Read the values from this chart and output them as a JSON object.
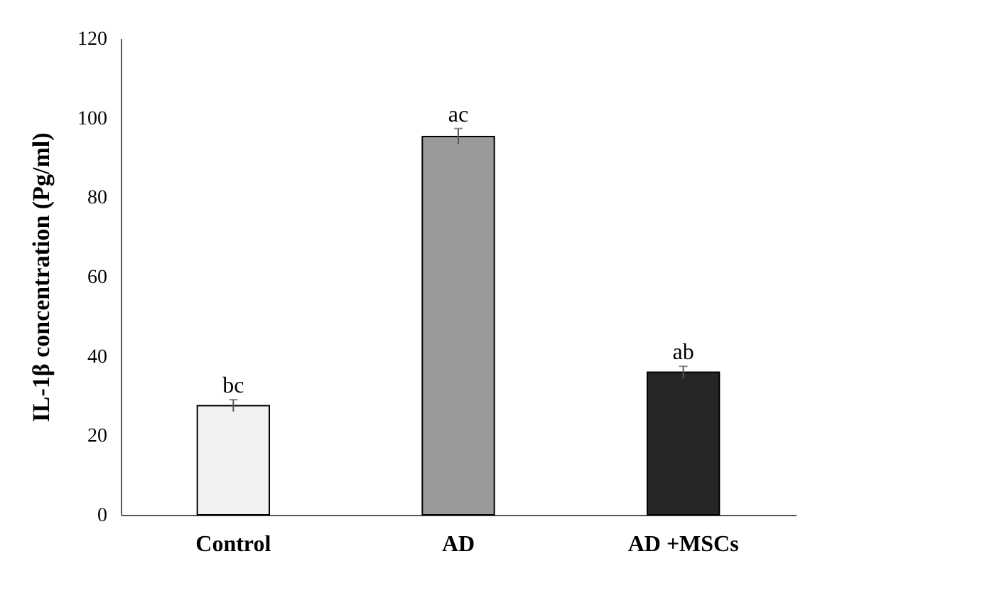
{
  "chart_data": {
    "type": "bar",
    "ylabel": "IL-1β concentration (Pg/ml)",
    "categories": [
      "Control",
      "AD",
      "AD +MSCs"
    ],
    "values": [
      27.5,
      95.3,
      35.9
    ],
    "colors": [
      "#f2f2f2",
      "#9a9a9a",
      "#262626"
    ],
    "errors": [
      1.5,
      2,
      1.5
    ],
    "ylim": [
      0,
      120
    ],
    "yticks": [
      0,
      20,
      40,
      60,
      80,
      100,
      120
    ],
    "grid": false,
    "annotations": [
      {
        "text": "bc",
        "x": "Control",
        "y": 29
      },
      {
        "text": "ac",
        "x": "AD",
        "y": 97.3
      },
      {
        "text": "ab",
        "x": "AD +MSCs",
        "y": 37.4
      }
    ]
  }
}
